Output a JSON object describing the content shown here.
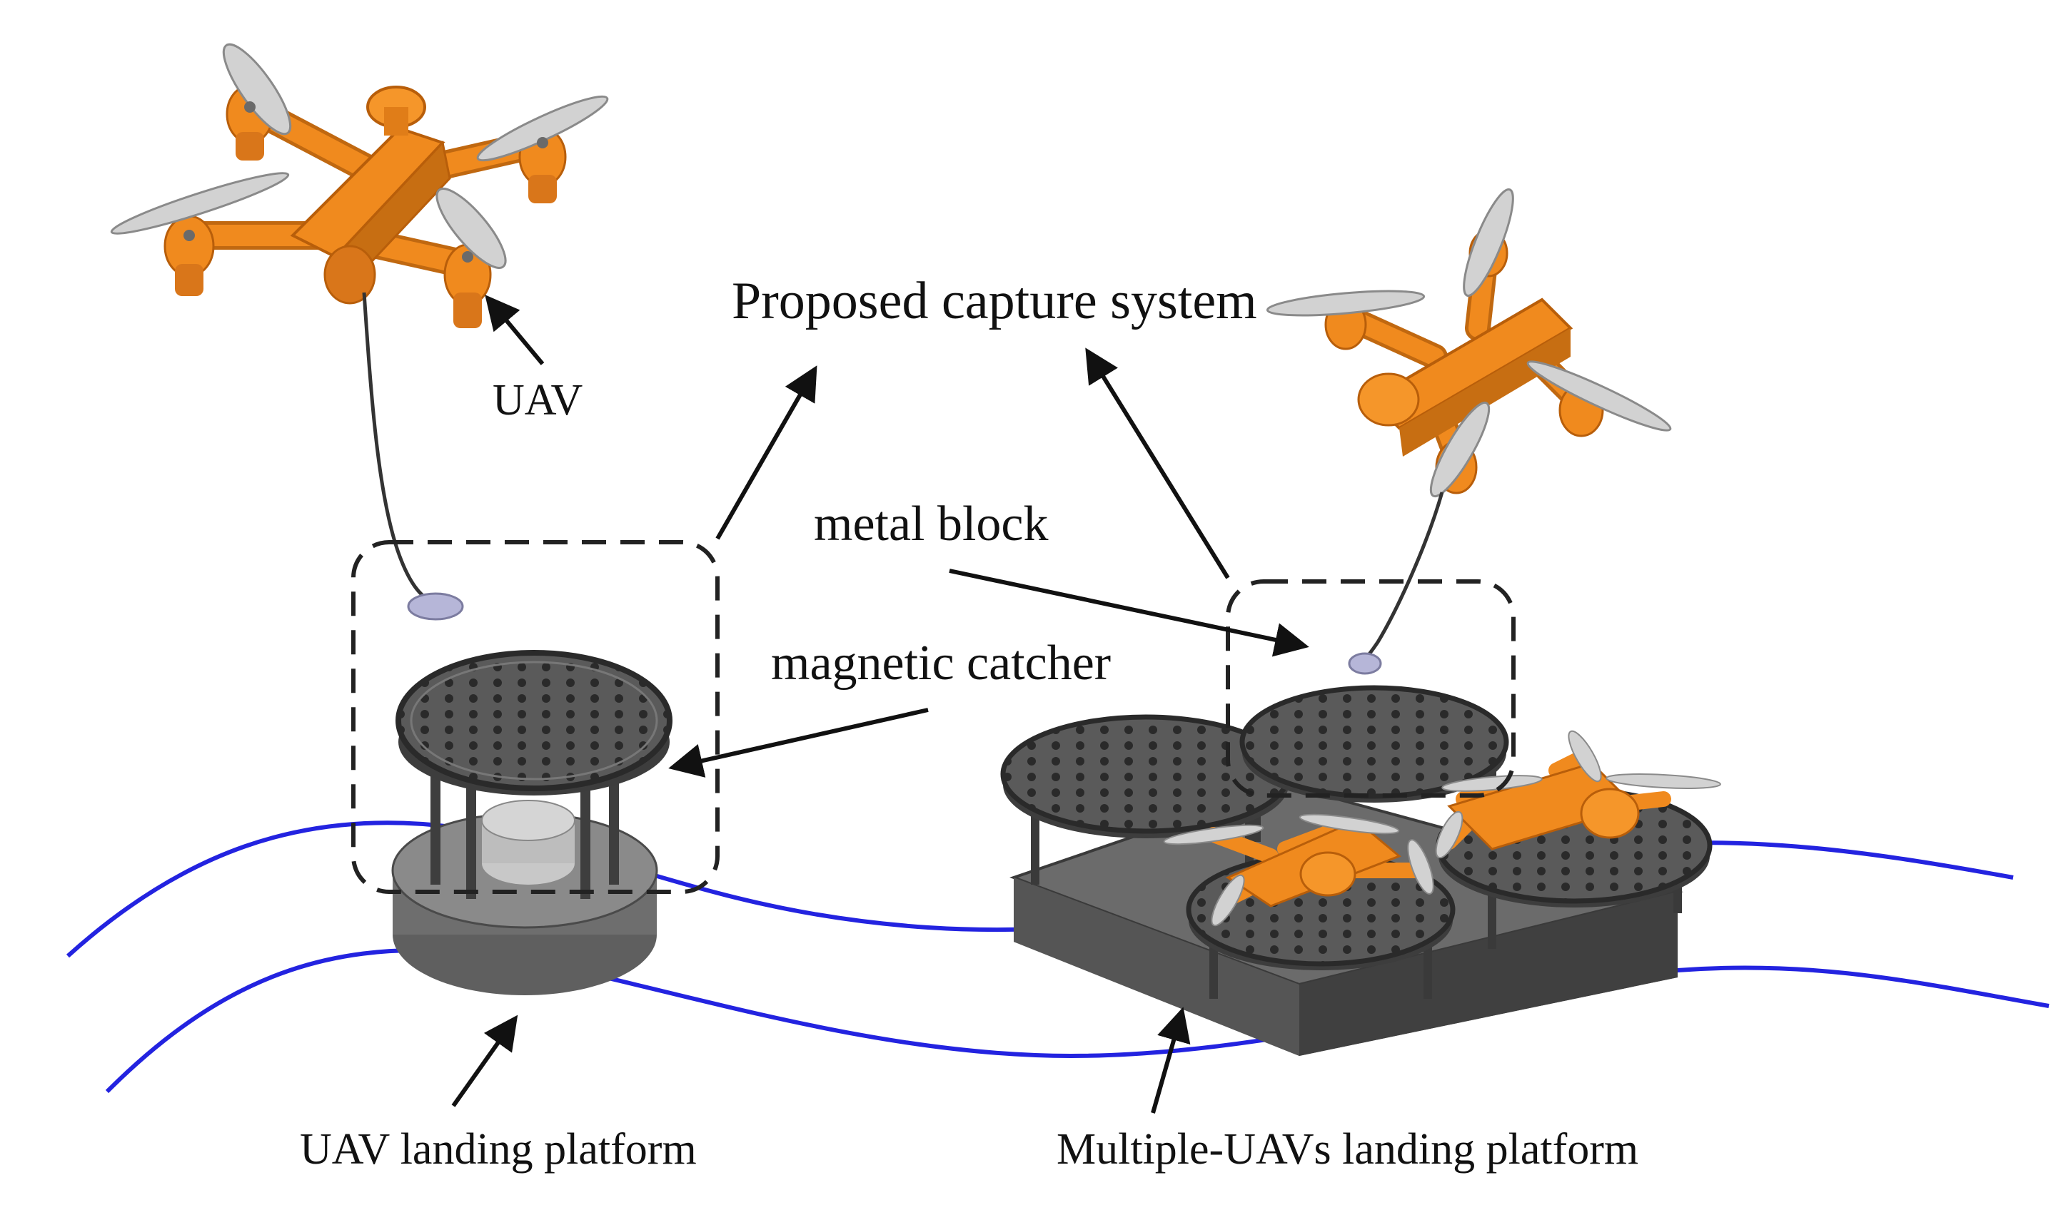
{
  "labels": {
    "uav": "UAV",
    "proposed_capture_system": "Proposed capture system",
    "metal_block": "metal block",
    "magnetic_catcher": "magnetic catcher",
    "uav_landing_platform": "UAV landing platform",
    "multi_uav_landing_platform": "Multiple-UAVs landing platform"
  },
  "colors": {
    "uav_body": "#f08a1e",
    "uav_shadow": "#b85e0a",
    "propeller": "#c9c9c9",
    "platform_dark": "#4a4a4a",
    "platform_mid": "#6e6e6e",
    "platform_light": "#9a9a9a",
    "water_wave": "#2323e0",
    "metal_block": "#b6b6d8",
    "arrow": "#111111",
    "dashed_box": "#222222"
  },
  "icons": {
    "drone": "quadcopter-uav-icon",
    "platform": "landing-platform-icon"
  }
}
